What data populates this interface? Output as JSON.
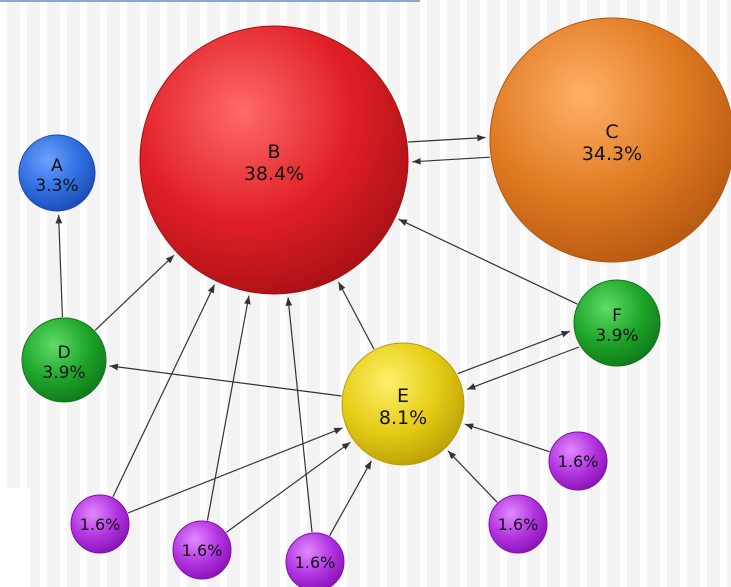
{
  "diagram": {
    "title": "",
    "colors": {
      "background": "#f3f3f3",
      "stripe": "#ffffff",
      "arrow": "#333333",
      "top_border": "#8aa8cc"
    },
    "nodes": [
      {
        "id": "A",
        "name": "A",
        "value": "3.3%",
        "fill": "#2f6fe0",
        "light": "#6ea0ff",
        "dark": "#1b48b0"
      },
      {
        "id": "B",
        "name": "B",
        "value": "38.4%",
        "fill": "#e01f25",
        "light": "#ff6a6a",
        "dark": "#a40f14"
      },
      {
        "id": "C",
        "name": "C",
        "value": "34.3%",
        "fill": "#e07a22",
        "light": "#ffb066",
        "dark": "#b3560f"
      },
      {
        "id": "D",
        "name": "D",
        "value": "3.9%",
        "fill": "#1ea52a",
        "light": "#5fdc66",
        "dark": "#0f7518"
      },
      {
        "id": "E",
        "name": "E",
        "value": "8.1%",
        "fill": "#e5cc15",
        "light": "#fff06a",
        "dark": "#b89c05"
      },
      {
        "id": "F",
        "name": "F",
        "value": "3.9%",
        "fill": "#1ea52a",
        "light": "#5fdc66",
        "dark": "#0f7518"
      },
      {
        "id": "P1",
        "name": "",
        "value": "1.6%",
        "fill": "#b233e0",
        "light": "#e08aff",
        "dark": "#8410b0"
      },
      {
        "id": "P2",
        "name": "",
        "value": "1.6%",
        "fill": "#b233e0",
        "light": "#e08aff",
        "dark": "#8410b0"
      },
      {
        "id": "P3",
        "name": "",
        "value": "1.6%",
        "fill": "#b233e0",
        "light": "#e08aff",
        "dark": "#8410b0"
      },
      {
        "id": "P4",
        "name": "",
        "value": "1.6%",
        "fill": "#b233e0",
        "light": "#e08aff",
        "dark": "#8410b0"
      },
      {
        "id": "P5",
        "name": "",
        "value": "1.6%",
        "fill": "#b233e0",
        "light": "#e08aff",
        "dark": "#8410b0"
      }
    ],
    "edges": [
      {
        "from": "D",
        "to": "A"
      },
      {
        "from": "D",
        "to": "B"
      },
      {
        "from": "B",
        "to": "C"
      },
      {
        "from": "C",
        "to": "B"
      },
      {
        "from": "E",
        "to": "B"
      },
      {
        "from": "E",
        "to": "D"
      },
      {
        "from": "F",
        "to": "B"
      },
      {
        "from": "E",
        "to": "F"
      },
      {
        "from": "F",
        "to": "E"
      },
      {
        "from": "P1",
        "to": "B"
      },
      {
        "from": "P1",
        "to": "E"
      },
      {
        "from": "P2",
        "to": "B"
      },
      {
        "from": "P2",
        "to": "E"
      },
      {
        "from": "P3",
        "to": "B"
      },
      {
        "from": "P3",
        "to": "E"
      },
      {
        "from": "P4",
        "to": "E"
      },
      {
        "from": "P5",
        "to": "E"
      }
    ]
  }
}
